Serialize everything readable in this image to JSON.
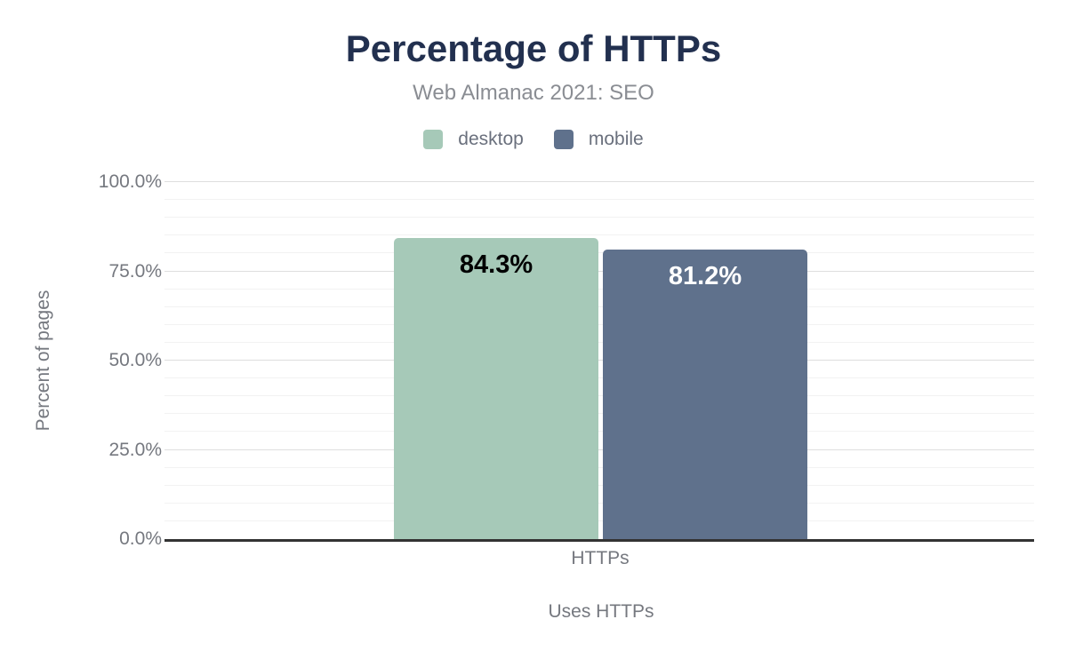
{
  "chart_data": {
    "type": "bar",
    "title": "Percentage of HTTPs",
    "subtitle": "Web Almanac 2021: SEO",
    "categories": [
      "HTTPs"
    ],
    "series": [
      {
        "name": "desktop",
        "value": 84.3,
        "display": "84.3%",
        "color": "#a6c9b8",
        "label_color": "#000000"
      },
      {
        "name": "mobile",
        "value": 81.2,
        "display": "81.2%",
        "color": "#5f718c",
        "label_color": "#ffffff"
      }
    ],
    "xlabel": "Uses HTTPs",
    "ylabel": "Percent of pages",
    "ylim": [
      0,
      100
    ],
    "yticks": [
      "0.0%",
      "25.0%",
      "50.0%",
      "75.0%",
      "100.0%"
    ],
    "grid": {
      "orientation": "horizontal",
      "minor_step": 5,
      "major_step": 25
    },
    "legend_position": "top-center"
  },
  "colors": {
    "background": "#ffffff",
    "title_text": "#22304f",
    "subtitle_text": "#8a8d93",
    "axis_text": "#75787f",
    "legend_text": "#6a707d",
    "axis_line": "#333333",
    "gridline_minor": "#f2f2f2",
    "gridline_major": "#dedede"
  }
}
